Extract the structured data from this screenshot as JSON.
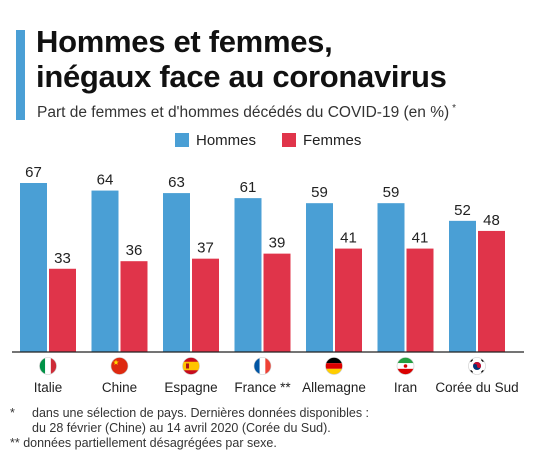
{
  "header": {
    "title_line1": "Hommes et femmes,",
    "title_line2": "inégaux face au coronavirus",
    "subtitle": "Part de femmes et d'hommes décédés du COVID-19 (en %)",
    "subtitle_marker": "*"
  },
  "colors": {
    "accent": "#4a9fd5",
    "hommes": "#4a9fd5",
    "femmes": "#e0344a",
    "baseline": "#222222"
  },
  "chart_data": {
    "type": "bar",
    "title": "Part de femmes et d'hommes décédés du COVID-19 (en %)",
    "categories": [
      "Italie",
      "Chine",
      "Espagne",
      "France **",
      "Allemagne",
      "Iran",
      "Corée du Sud"
    ],
    "flags": [
      "italy-flag",
      "china-flag",
      "spain-flag",
      "france-flag",
      "germany-flag",
      "iran-flag",
      "south-korea-flag"
    ],
    "series": [
      {
        "name": "Hommes",
        "values": [
          67,
          64,
          63,
          61,
          59,
          59,
          52
        ]
      },
      {
        "name": "Femmes",
        "values": [
          33,
          36,
          37,
          39,
          41,
          41,
          48
        ]
      }
    ],
    "ylim": [
      0,
      67
    ],
    "grid": false,
    "legend": "top-center",
    "data_labels": true
  },
  "footnotes": {
    "line1_marker": "*",
    "line1": "dans une sélection de pays. Dernières données disponibles :",
    "line2": "du 28 février (Chine) au 14 avril 2020 (Corée du Sud).",
    "line3": "** données partiellement désagrégées par sexe."
  }
}
